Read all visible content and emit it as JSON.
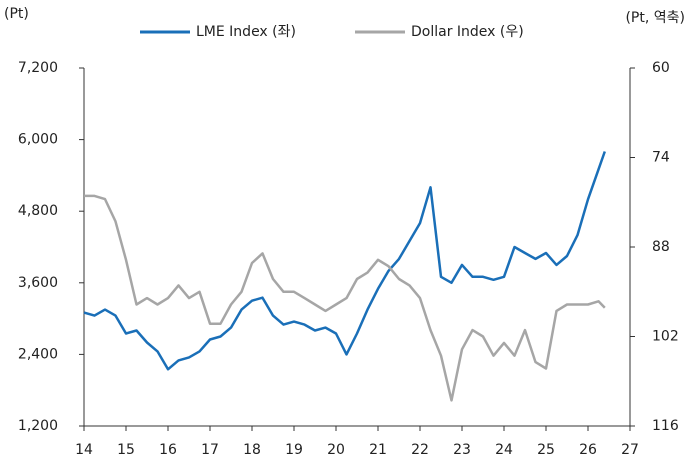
{
  "chart_data": {
    "type": "line",
    "y_unit_label": "(Pt)",
    "y2_unit_label": "(Pt, 역축)",
    "x": [
      14,
      14.25,
      14.5,
      14.75,
      15,
      15.25,
      15.5,
      15.75,
      16,
      16.25,
      16.5,
      16.75,
      17,
      17.25,
      17.5,
      17.75,
      18,
      18.25,
      18.5,
      18.75,
      19,
      19.25,
      19.5,
      19.75,
      20,
      20.25,
      20.5,
      20.75,
      21,
      21.25,
      21.5,
      21.75,
      22,
      22.25,
      22.5,
      22.75,
      23,
      23.25,
      23.5,
      23.75,
      24,
      24.25,
      24.5,
      24.75,
      25,
      25.25,
      25.5,
      25.75,
      26,
      26.25,
      26.4
    ],
    "series": [
      {
        "name": "LME Index (좌)",
        "color": "#1a6fb8",
        "axis": "y",
        "values": [
          3100,
          3050,
          3150,
          3050,
          2750,
          2800,
          2600,
          2450,
          2150,
          2300,
          2350,
          2450,
          2650,
          2700,
          2850,
          3150,
          3300,
          3350,
          3050,
          2900,
          2950,
          2900,
          2800,
          2850,
          2750,
          2400,
          2750,
          3150,
          3500,
          3800,
          4000,
          4300,
          4600,
          5200,
          3700,
          3600,
          3900,
          3700,
          3700,
          3650,
          3700,
          4200,
          4100,
          4000,
          4100,
          3900,
          4050,
          4400,
          5000,
          5500,
          5800
        ]
      },
      {
        "name": "Dollar Index (우)",
        "color": "#a6a6a6",
        "axis": "y2",
        "values": [
          80,
          80,
          80.5,
          84,
          90,
          97,
          96,
          97,
          96,
          94,
          96,
          95,
          100,
          100,
          97,
          95,
          90.5,
          89,
          93,
          95,
          95,
          96,
          97,
          98,
          97,
          96,
          93,
          92,
          90,
          91,
          93,
          94,
          96,
          101,
          105,
          112,
          104,
          101,
          102,
          105,
          103,
          105,
          101,
          106,
          107,
          98,
          97,
          97,
          97,
          96.5,
          97.5
        ]
      }
    ],
    "xlim": [
      14,
      27
    ],
    "xticks": [
      14,
      15,
      16,
      17,
      18,
      19,
      20,
      21,
      22,
      23,
      24,
      25,
      26,
      27
    ],
    "ylim": [
      1200,
      7200
    ],
    "yticks": [
      {
        "value": 1200,
        "label": "1,200"
      },
      {
        "value": 2400,
        "label": "2,400"
      },
      {
        "value": 3600,
        "label": "3,600"
      },
      {
        "value": 4800,
        "label": "4,800"
      },
      {
        "value": 6000,
        "label": "6,000"
      },
      {
        "value": 7200,
        "label": "7,200"
      }
    ],
    "y2lim": [
      116,
      60
    ],
    "y2ticks": [
      116,
      102,
      88,
      74,
      60
    ]
  }
}
